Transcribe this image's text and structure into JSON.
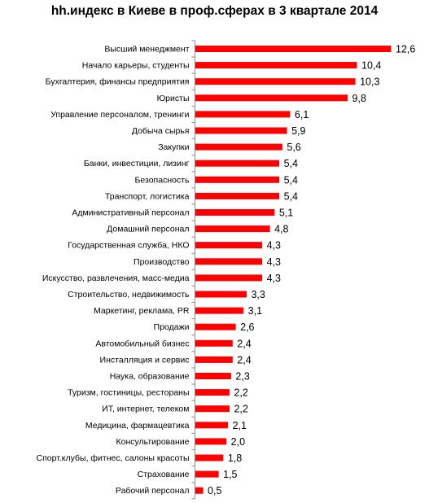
{
  "chart_data": {
    "type": "bar",
    "orientation": "horizontal",
    "title": "hh.индекс в Киеве в проф.сферах в 3 квартале 2014",
    "xlabel": "",
    "ylabel": "",
    "bar_color": "#ff0000",
    "grid": false,
    "legend": "none",
    "xlim": [
      0,
      12.6
    ],
    "categories": [
      "Высший менеджмент",
      "Начало карьеры, студенты",
      "Бухгалтерия, финансы предприятия",
      "Юристы",
      "Управление персоналом, тренинги",
      "Добыча сырья",
      "Закупки",
      "Банки, инвестиции, лизинг",
      "Безопасность",
      "Транспорт, логистика",
      "Административный персонал",
      "Домашний персонал",
      "Государственная служба, НКО",
      "Производство",
      "Искусство, развлечения, масс-медиа",
      "Строительство, недвижимость",
      "Маркетинг, реклама, PR",
      "Продажи",
      "Автомобильный бизнес",
      "Инсталляция и сервис",
      "Наука, образование",
      "Туризм, гостиницы, рестораны",
      "ИТ, интернет, телеком",
      "Медицина, фармацевтика",
      "Консультирование",
      "Спорт.клубы, фитнес, салоны красоты",
      "Страхование",
      "Рабочий персонал"
    ],
    "values": [
      12.6,
      10.4,
      10.3,
      9.8,
      6.1,
      5.9,
      5.6,
      5.4,
      5.4,
      5.4,
      5.1,
      4.8,
      4.3,
      4.3,
      4.3,
      3.3,
      3.1,
      2.6,
      2.4,
      2.4,
      2.3,
      2.2,
      2.2,
      2.1,
      2.0,
      1.8,
      1.5,
      0.5
    ],
    "value_labels": [
      "12,6",
      "10,4",
      "10,3",
      "9,8",
      "6,1",
      "5,9",
      "5,6",
      "5,4",
      "5,4",
      "5,4",
      "5,1",
      "4,8",
      "4,3",
      "4,3",
      "4,3",
      "3,3",
      "3,1",
      "2,6",
      "2,4",
      "2,4",
      "2,3",
      "2,2",
      "2,2",
      "2,1",
      "2,0",
      "1,8",
      "1,5",
      "0,5"
    ]
  }
}
